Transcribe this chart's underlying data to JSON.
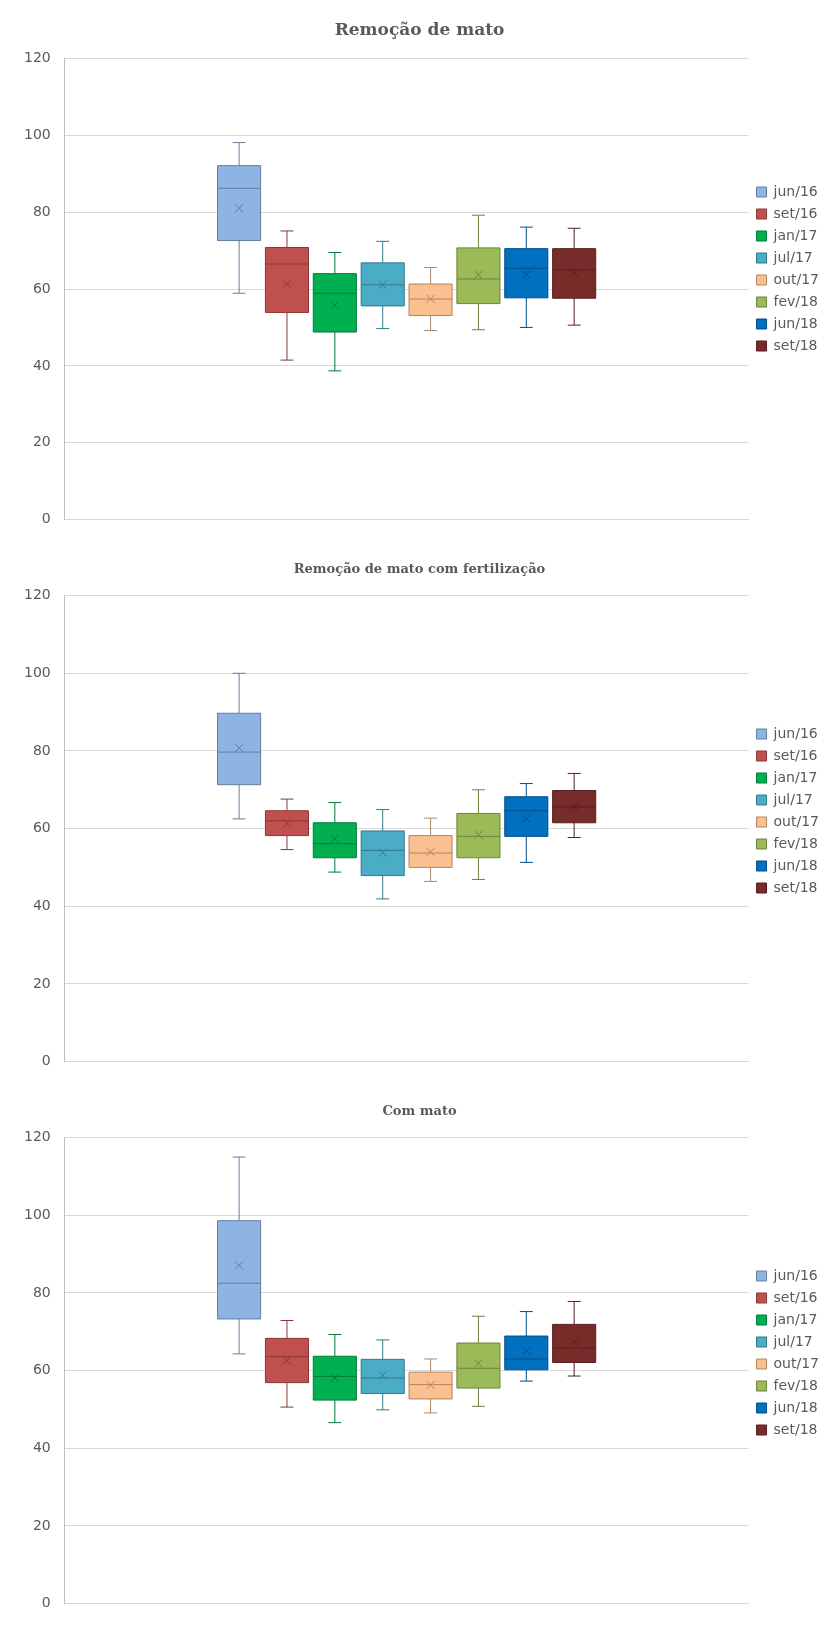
{
  "chart_data": [
    {
      "type": "box",
      "title": "Remoção de mato",
      "categories": [
        null
      ],
      "ylim": [
        0,
        120
      ],
      "yticks": [
        0,
        20,
        40,
        60,
        80,
        100,
        120
      ],
      "grid": "y",
      "legend": "right",
      "tick_labels": "y",
      "series": [
        {
          "name": "jun/16",
          "color": "#8db4e2",
          "boxes": [
            {
              "low": 58.9,
              "q1": 72.6,
              "median": 86.2,
              "q3": 92.1,
              "high": 98.1,
              "mean": 81.0
            }
          ]
        },
        {
          "name": "set/16",
          "color": "#c0504d",
          "boxes": [
            {
              "low": 41.5,
              "q1": 53.9,
              "median": 66.5,
              "q3": 70.8,
              "high": 75.1,
              "mean": 61.2
            }
          ]
        },
        {
          "name": "jan/17",
          "color": "#00b050",
          "boxes": [
            {
              "low": 38.7,
              "q1": 48.8,
              "median": 58.9,
              "q3": 64.0,
              "high": 69.5,
              "mean": 55.8
            }
          ]
        },
        {
          "name": "jul/17",
          "color": "#4bacc6",
          "boxes": [
            {
              "low": 49.7,
              "q1": 55.6,
              "median": 61.1,
              "q3": 66.8,
              "high": 72.4,
              "mean": 61.1
            }
          ]
        },
        {
          "name": "out/17",
          "color": "#fac08f",
          "boxes": [
            {
              "low": 49.2,
              "q1": 53.1,
              "median": 57.4,
              "q3": 61.3,
              "high": 65.6,
              "mean": 57.4
            }
          ]
        },
        {
          "name": "fev/18",
          "color": "#9bbb59",
          "boxes": [
            {
              "low": 49.4,
              "q1": 56.2,
              "median": 62.6,
              "q3": 70.7,
              "high": 79.2,
              "mean": 63.7
            }
          ]
        },
        {
          "name": "jun/18",
          "color": "#0070c0",
          "boxes": [
            {
              "low": 50.0,
              "q1": 57.7,
              "median": 65.4,
              "q3": 70.5,
              "high": 76.1,
              "mean": 63.8
            }
          ]
        },
        {
          "name": "set/18",
          "color": "#772c2a",
          "boxes": [
            {
              "low": 50.6,
              "q1": 57.6,
              "median": 65.0,
              "q3": 70.5,
              "high": 75.8,
              "mean": 64.2
            }
          ]
        }
      ]
    },
    {
      "type": "box",
      "title": "Remoção de mato com fertilização",
      "categories": [
        null
      ],
      "ylim": [
        0,
        120
      ],
      "yticks": [
        0,
        20,
        40,
        60,
        80,
        100,
        120
      ],
      "grid": "y",
      "legend": "right",
      "tick_labels": "y",
      "series": [
        {
          "name": "jun/16",
          "color": "#8db4e2",
          "boxes": [
            {
              "low": 62.5,
              "q1": 71.3,
              "median": 79.7,
              "q3": 89.7,
              "high": 100,
              "mean": 80.8
            }
          ]
        },
        {
          "name": "set/16",
          "color": "#c0504d",
          "boxes": [
            {
              "low": 54.6,
              "q1": 58.2,
              "median": 62.0,
              "q3": 64.6,
              "high": 67.6,
              "mean": 61.3
            }
          ]
        },
        {
          "name": "jan/17",
          "color": "#00b050",
          "boxes": [
            {
              "low": 48.8,
              "q1": 52.5,
              "median": 56.1,
              "q3": 61.5,
              "high": 66.7,
              "mean": 57.3
            }
          ]
        },
        {
          "name": "jul/17",
          "color": "#4bacc6",
          "boxes": [
            {
              "low": 41.9,
              "q1": 47.9,
              "median": 54.4,
              "q3": 59.4,
              "high": 64.9,
              "mean": 53.8
            }
          ]
        },
        {
          "name": "out/17",
          "color": "#fac08f",
          "boxes": [
            {
              "low": 46.4,
              "q1": 50.0,
              "median": 53.7,
              "q3": 58.2,
              "high": 62.7,
              "mean": 54.0
            }
          ]
        },
        {
          "name": "fev/18",
          "color": "#9bbb59",
          "boxes": [
            {
              "low": 46.9,
              "q1": 52.5,
              "median": 58.0,
              "q3": 63.9,
              "high": 70.0,
              "mean": 58.4
            }
          ]
        },
        {
          "name": "jun/18",
          "color": "#0070c0",
          "boxes": [
            {
              "low": 51.3,
              "q1": 58.0,
              "median": 64.6,
              "q3": 68.2,
              "high": 71.6,
              "mean": 62.6
            }
          ]
        },
        {
          "name": "set/18",
          "color": "#772c2a",
          "boxes": [
            {
              "low": 57.7,
              "q1": 61.5,
              "median": 65.6,
              "q3": 69.8,
              "high": 74.2,
              "mean": 65.6
            }
          ]
        }
      ]
    },
    {
      "type": "box",
      "title": "Com mato",
      "categories": [
        null
      ],
      "ylim": [
        0,
        120
      ],
      "yticks": [
        0,
        20,
        40,
        60,
        80,
        100,
        120
      ],
      "grid": "y",
      "legend": "right",
      "tick_labels": "y",
      "series": [
        {
          "name": "jun/16",
          "color": "#8db4e2",
          "boxes": [
            {
              "low": 64.3,
              "q1": 73.3,
              "median": 82.5,
              "q3": 98.6,
              "high": 115,
              "mean": 87.1
            }
          ]
        },
        {
          "name": "set/16",
          "color": "#c0504d",
          "boxes": [
            {
              "low": 50.6,
              "q1": 56.9,
              "median": 63.6,
              "q3": 68.3,
              "high": 72.9,
              "mean": 62.6
            }
          ]
        },
        {
          "name": "jan/17",
          "color": "#00b050",
          "boxes": [
            {
              "low": 46.6,
              "q1": 52.4,
              "median": 58.5,
              "q3": 63.7,
              "high": 69.3,
              "mean": 58.1
            }
          ]
        },
        {
          "name": "jul/17",
          "color": "#4bacc6",
          "boxes": [
            {
              "low": 49.9,
              "q1": 54.1,
              "median": 58.1,
              "q3": 62.9,
              "high": 67.9,
              "mean": 58.8
            }
          ]
        },
        {
          "name": "out/17",
          "color": "#fac08f",
          "boxes": [
            {
              "low": 49.1,
              "q1": 52.7,
              "median": 56.4,
              "q3": 59.6,
              "high": 63.0,
              "mean": 56.3
            }
          ]
        },
        {
          "name": "fev/18",
          "color": "#9bbb59",
          "boxes": [
            {
              "low": 50.8,
              "q1": 55.5,
              "median": 60.6,
              "q3": 67.1,
              "high": 74.0,
              "mean": 61.9
            }
          ]
        },
        {
          "name": "jun/18",
          "color": "#0070c0",
          "boxes": [
            {
              "low": 57.3,
              "q1": 60.2,
              "median": 63.0,
              "q3": 68.9,
              "high": 75.2,
              "mean": 65.2
            }
          ]
        },
        {
          "name": "set/18",
          "color": "#772c2a",
          "boxes": [
            {
              "low": 58.6,
              "q1": 62.1,
              "median": 65.8,
              "q3": 71.9,
              "high": 77.8,
              "mean": 67.4
            }
          ]
        }
      ]
    }
  ]
}
